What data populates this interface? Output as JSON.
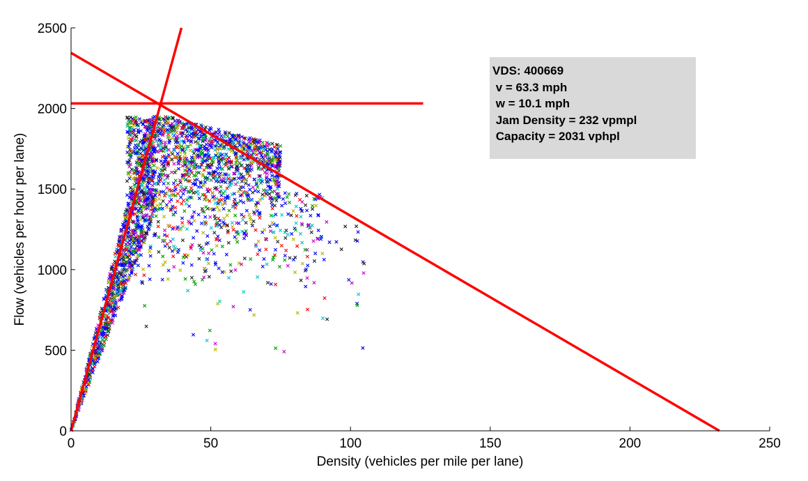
{
  "chart_data": {
    "type": "scatter",
    "title": "",
    "xlabel": "Density (vehicles per mile per lane)",
    "ylabel": "Flow (vehicles per hour per lane)",
    "xlim": [
      0,
      250
    ],
    "ylim": [
      0,
      2500
    ],
    "xticks": [
      "0",
      "50",
      "100",
      "150",
      "200",
      "250"
    ],
    "yticks": [
      "0",
      "500",
      "1000",
      "1500",
      "2000",
      "2500"
    ],
    "grid": false,
    "marker": "x",
    "scatter_colors": [
      "#0000ff",
      "#0000ff",
      "#0000ff",
      "#ff0000",
      "#00a000",
      "#00c8c8",
      "#c800c8",
      "#b4b400",
      "#202020"
    ],
    "scatter_regions": [
      {
        "x_min": 0,
        "x_max": 30,
        "slope_low": 45,
        "slope_high": 70,
        "y_cap": 1950,
        "count": 1100
      },
      {
        "x_min": 20,
        "x_max": 75,
        "y_min": 1400,
        "y_max": 1950,
        "y_max_slope": -4.5,
        "count": 1300
      },
      {
        "x_min": 20,
        "x_max": 90,
        "y_min": 900,
        "y_max": 1500,
        "count": 420
      },
      {
        "x_min": 25,
        "x_max": 105,
        "y_min": 480,
        "y_max": 1300,
        "count": 90
      }
    ],
    "fitted_lines": [
      {
        "name": "free-flow",
        "color": "#ff0000",
        "points": [
          [
            0,
            0
          ],
          [
            39.5,
            2500
          ]
        ]
      },
      {
        "name": "congested",
        "color": "#ff0000",
        "points": [
          [
            0,
            2345
          ],
          [
            232,
            0
          ]
        ]
      },
      {
        "name": "capacity",
        "color": "#ff0000",
        "points": [
          [
            0,
            2031
          ],
          [
            126,
            2031
          ]
        ]
      }
    ],
    "annotations": [
      "VDS: 400669",
      " v = 63.3 mph",
      " w = 10.1 mph",
      " Jam Density = 232 vpmpl",
      " Capacity = 2031 vphpl"
    ],
    "annotation_background": "#d9d9d9"
  }
}
